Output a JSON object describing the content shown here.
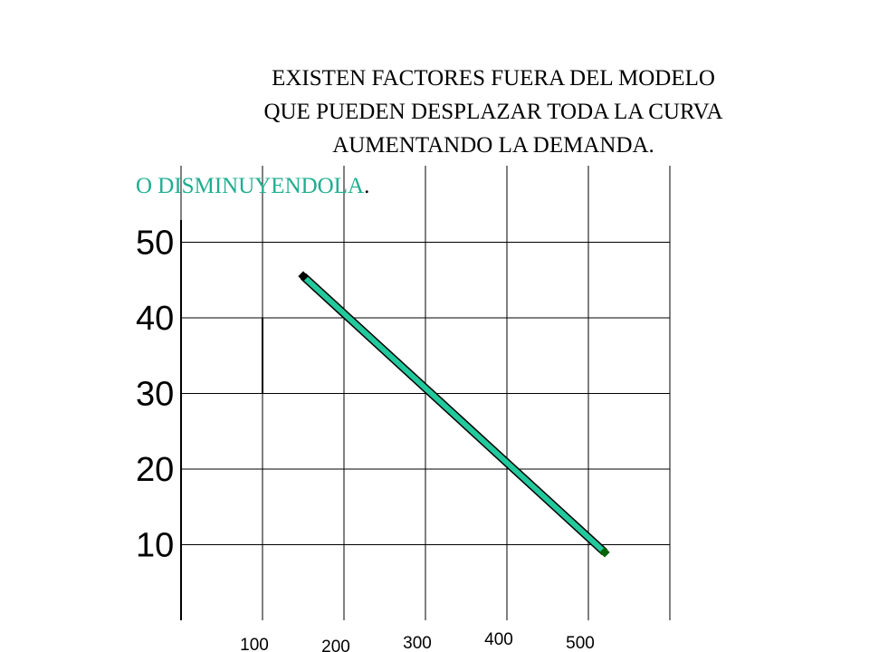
{
  "title_lines": [
    "EXISTEN FACTORES FUERA DEL MODELO",
    "QUE PUEDEN DESPLAZAR TODA LA CURVA",
    "AUMENTANDO  LA DEMANDA."
  ],
  "subtitle": {
    "text": "O DISMINUYENDOLA",
    "punctuation": ".",
    "text_color": "#1fae8f",
    "punctuation_color": "#000000"
  },
  "colors": {
    "grid": "#000000",
    "curve": "#22c99c",
    "curve_shadow": "#000000",
    "start_marker": "#000000",
    "end_marker": "#006400"
  },
  "chart_data": {
    "type": "line",
    "title": "EXISTEN FACTORES FUERA DEL MODELO QUE PUEDEN DESPLAZAR TODA LA CURVA AUMENTANDO  LA DEMANDA.",
    "xlabel": "",
    "ylabel": "",
    "xlim": [
      0,
      500
    ],
    "ylim": [
      0,
      60
    ],
    "x_ticks": [
      100,
      200,
      300,
      400,
      500
    ],
    "y_ticks": [
      10,
      20,
      30,
      40,
      50
    ],
    "grid": true,
    "series": [
      {
        "x": [
          150,
          520
        ],
        "y": [
          45.5,
          9
        ]
      }
    ],
    "annotations": [
      {
        "type": "vertical-segment",
        "x": 100,
        "y": [
          30,
          40
        ]
      }
    ]
  }
}
